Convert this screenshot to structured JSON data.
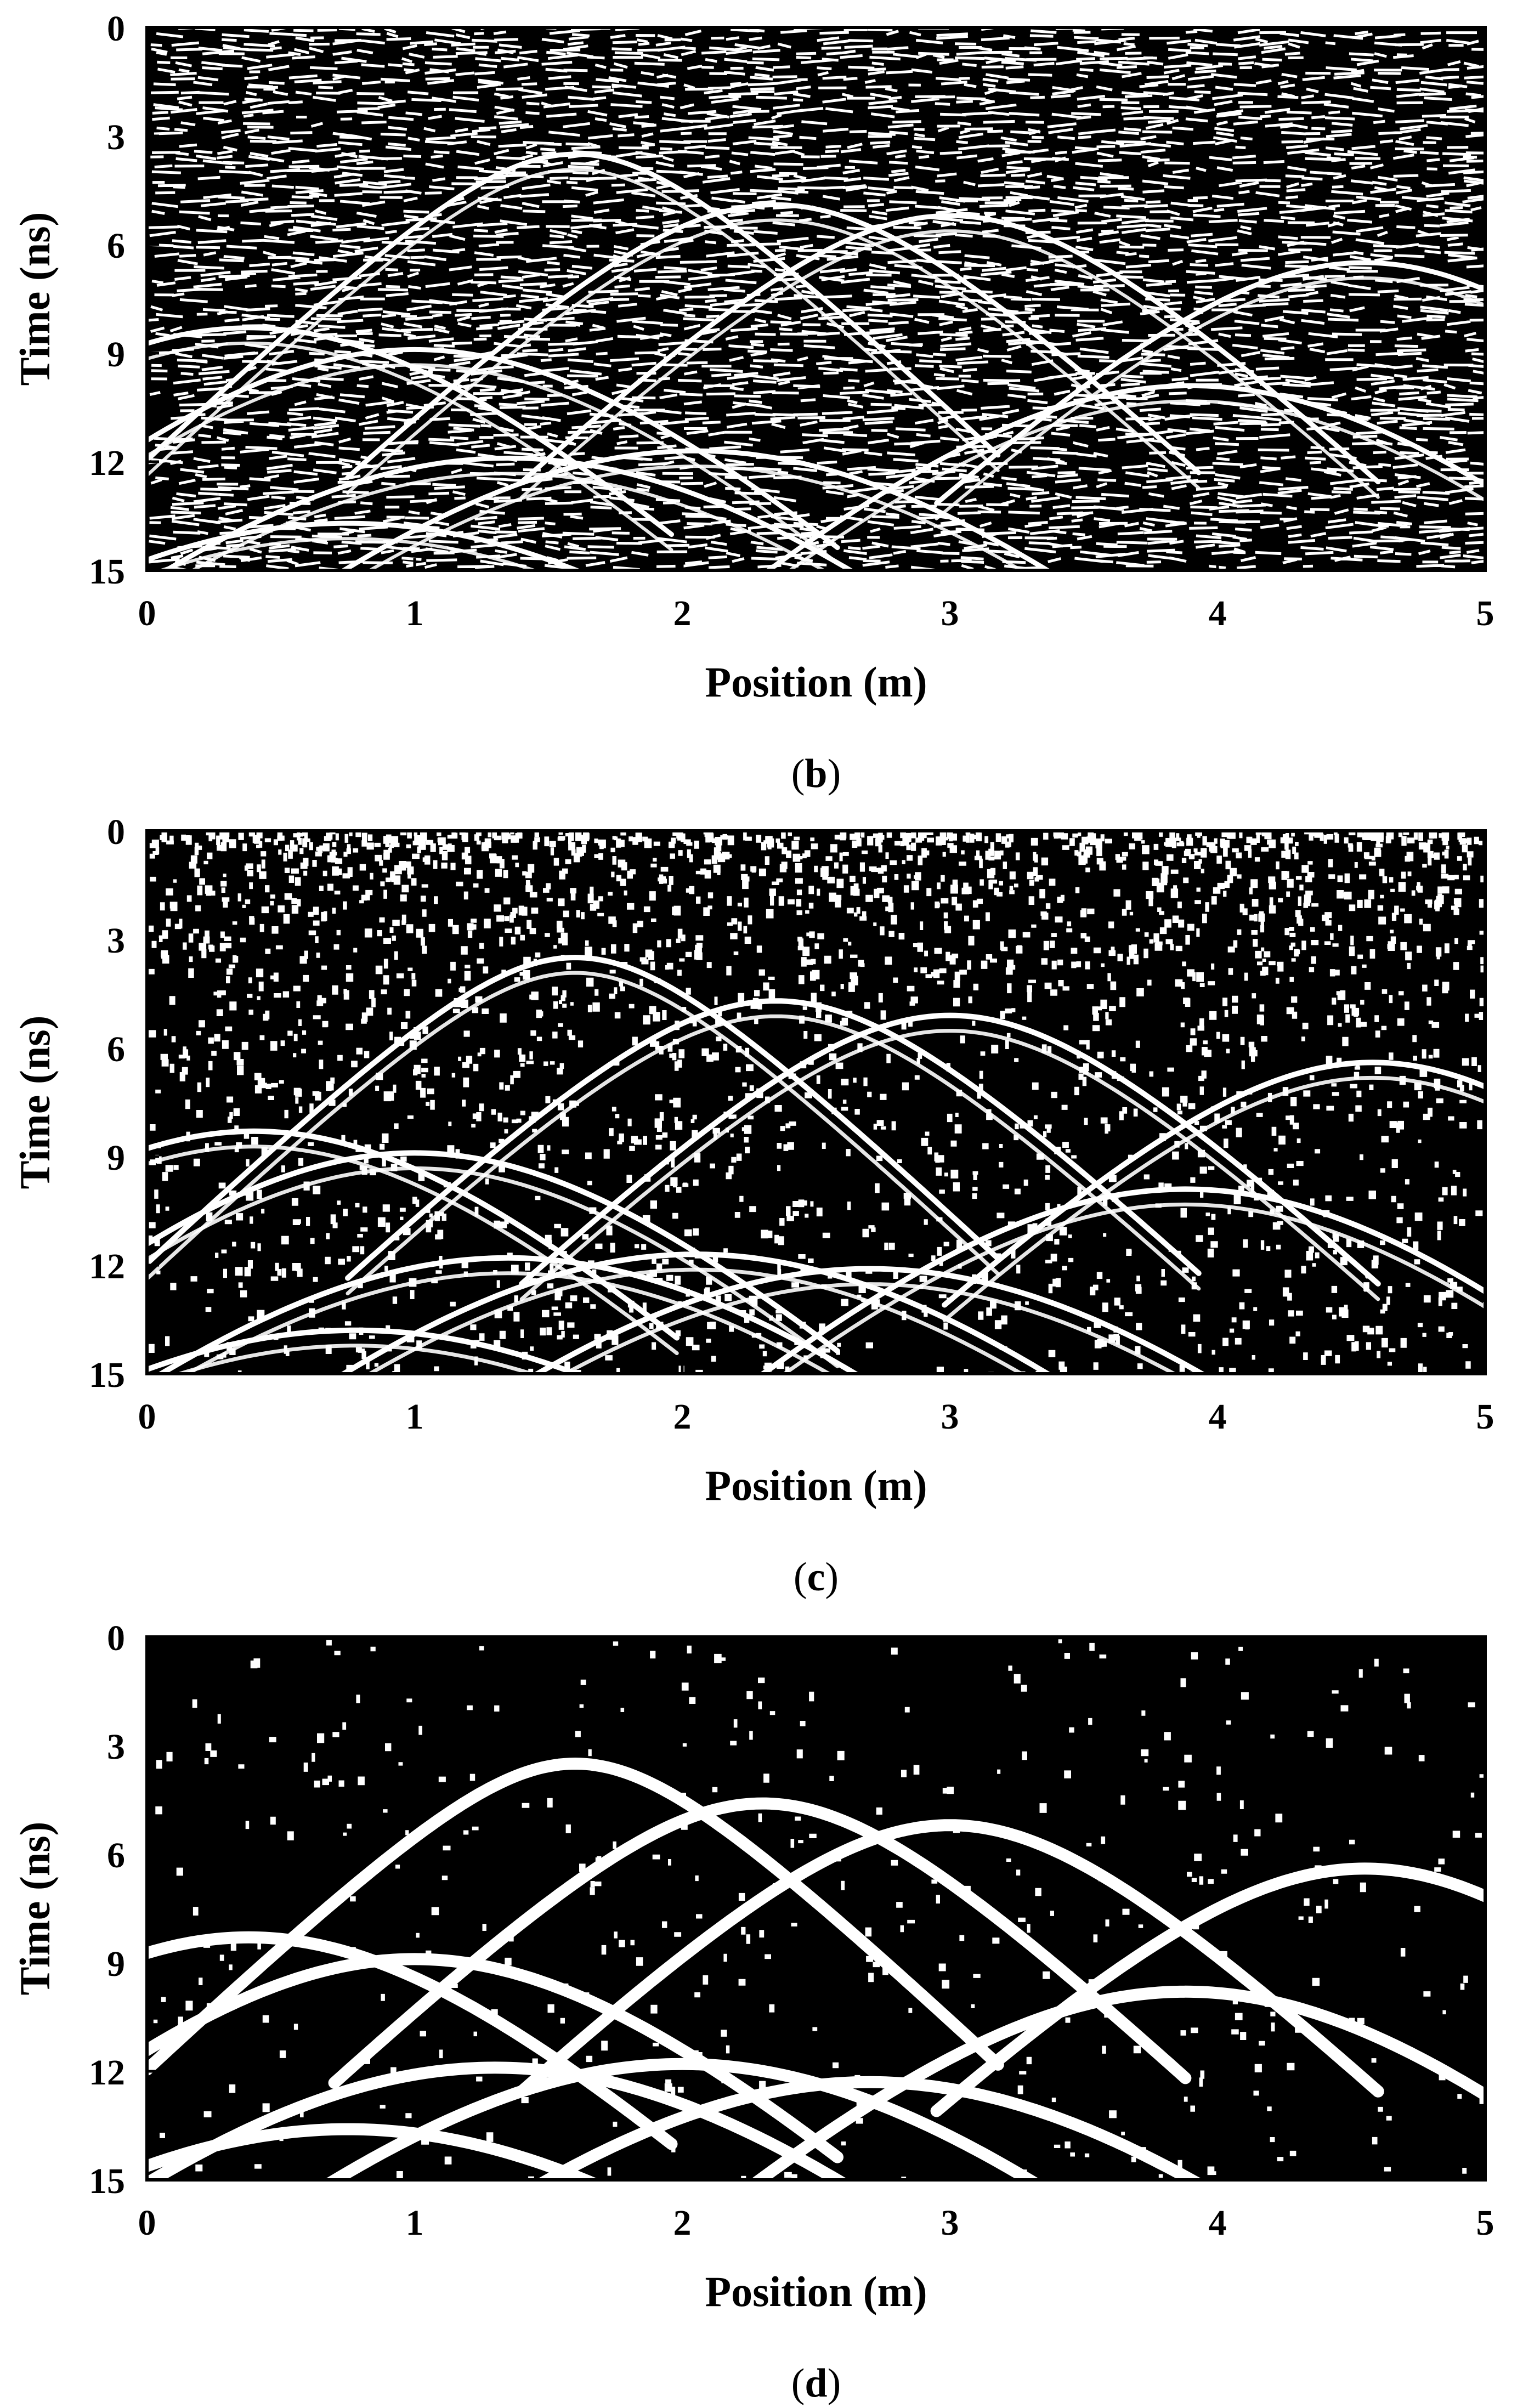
{
  "figure": {
    "background": "#ffffff",
    "panel_background": "#000000",
    "trace_color": "#ffffff"
  },
  "chart_data": [
    {
      "type": "heatmap",
      "caption": "b",
      "xlabel": "Position (m)",
      "ylabel": "Time (ns)",
      "xlim": [
        0,
        5
      ],
      "ylim": [
        15,
        0
      ],
      "xticks": [
        "0",
        "1",
        "2",
        "3",
        "4",
        "5"
      ],
      "yticks": [
        "0",
        "3",
        "6",
        "9",
        "12",
        "15"
      ],
      "noise_level": 0.55,
      "hyperbolas": [
        {
          "x0": 0.38,
          "t0": 8.3
        },
        {
          "x0": 1.0,
          "t0": 8.9
        },
        {
          "x0": 1.6,
          "t0": 3.5
        },
        {
          "x0": 2.35,
          "t0": 4.9
        },
        {
          "x0": 3.0,
          "t0": 5.2
        },
        {
          "x0": 3.9,
          "t0": 9.9
        },
        {
          "x0": 4.55,
          "t0": 6.5
        },
        {
          "x0": 1.35,
          "t0": 11.9
        },
        {
          "x0": 2.05,
          "t0": 11.7
        },
        {
          "x0": 0.75,
          "t0": 13.7
        }
      ]
    },
    {
      "type": "heatmap",
      "caption": "c",
      "xlabel": "Position (m)",
      "ylabel": "Time (ns)",
      "xlim": [
        0,
        5
      ],
      "ylim": [
        15,
        0
      ],
      "xticks": [
        "0",
        "1",
        "2",
        "3",
        "4",
        "5"
      ],
      "yticks": [
        "0",
        "3",
        "6",
        "9",
        "12",
        "15"
      ],
      "noise_level": 0.2,
      "hyperbolas": [
        {
          "x0": 0.4,
          "t0": 8.3
        },
        {
          "x0": 1.0,
          "t0": 8.9
        },
        {
          "x0": 1.6,
          "t0": 3.5
        },
        {
          "x0": 2.35,
          "t0": 4.7
        },
        {
          "x0": 3.0,
          "t0": 5.1
        },
        {
          "x0": 3.88,
          "t0": 9.9
        },
        {
          "x0": 4.58,
          "t0": 6.4
        },
        {
          "x0": 1.35,
          "t0": 11.8
        },
        {
          "x0": 2.05,
          "t0": 11.7
        },
        {
          "x0": 2.7,
          "t0": 12.1
        },
        {
          "x0": 0.78,
          "t0": 13.8
        }
      ]
    },
    {
      "type": "heatmap",
      "caption": "d",
      "xlabel": "Position (m)",
      "ylabel": "Time (ns)",
      "xlim": [
        0,
        5
      ],
      "ylim": [
        15,
        0
      ],
      "xticks": [
        "0",
        "1",
        "2",
        "3",
        "4",
        "5"
      ],
      "yticks": [
        "0",
        "3",
        "6",
        "9",
        "12",
        "15"
      ],
      "noise_level": 0.03,
      "hyperbolas": [
        {
          "x0": 0.38,
          "t0": 8.3
        },
        {
          "x0": 1.0,
          "t0": 8.9
        },
        {
          "x0": 1.6,
          "t0": 3.5
        },
        {
          "x0": 2.3,
          "t0": 4.6
        },
        {
          "x0": 3.0,
          "t0": 5.2
        },
        {
          "x0": 3.88,
          "t0": 9.8
        },
        {
          "x0": 4.55,
          "t0": 6.4
        },
        {
          "x0": 1.3,
          "t0": 11.9
        },
        {
          "x0": 2.0,
          "t0": 11.8
        },
        {
          "x0": 2.7,
          "t0": 12.3
        },
        {
          "x0": 0.75,
          "t0": 13.6
        }
      ]
    }
  ]
}
